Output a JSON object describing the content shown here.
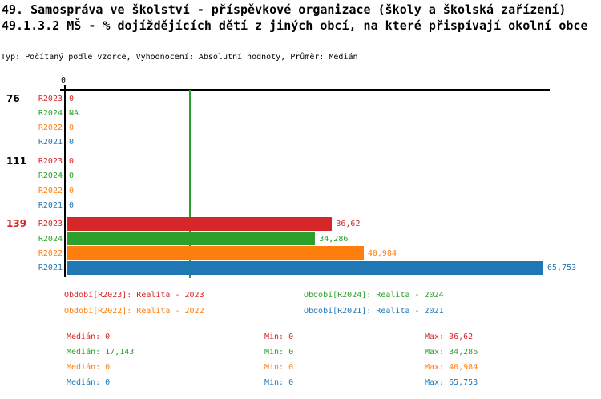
{
  "header": {
    "title_line1": "49. Samospráva ve školství - příspěvkové organizace (školy a školská zařízení)",
    "title_line2": "49.1.3.2 MŠ - % dojíždějících dětí z jiných obcí, na které přispívají okolní obce",
    "meta": "Typ: Počítaný podle vzorce, Vyhodnocení: Absolutní hodnoty, Průměr: Medián"
  },
  "colors": {
    "R2023": "#d62728",
    "R2024": "#2ca02c",
    "R2022": "#ff7f0e",
    "R2021": "#1f77b4",
    "axis": "#000000",
    "median_line": "#2ca02c",
    "group_label_default": "#000000",
    "group_label_highlight": "#d62728"
  },
  "chart_data": {
    "type": "bar",
    "orientation": "horizontal",
    "axis_tick_zero": "0",
    "x_min": 0,
    "x_max": 65.753,
    "median_line_value": 17.143,
    "series_order": [
      "R2023",
      "R2024",
      "R2022",
      "R2021"
    ],
    "groups": [
      {
        "label": "76",
        "label_color": "#000000",
        "rows": [
          {
            "series": "R2023",
            "value": 0,
            "display": "0"
          },
          {
            "series": "R2024",
            "value": null,
            "display": "NA"
          },
          {
            "series": "R2022",
            "value": 0,
            "display": "0"
          },
          {
            "series": "R2021",
            "value": 0,
            "display": "0"
          }
        ]
      },
      {
        "label": "111",
        "label_color": "#000000",
        "rows": [
          {
            "series": "R2023",
            "value": 0,
            "display": "0"
          },
          {
            "series": "R2024",
            "value": 0,
            "display": "0"
          },
          {
            "series": "R2022",
            "value": 0,
            "display": "0"
          },
          {
            "series": "R2021",
            "value": 0,
            "display": "0"
          }
        ]
      },
      {
        "label": "139",
        "label_color": "#d62728",
        "rows": [
          {
            "series": "R2023",
            "value": 36.62,
            "display": "36,62"
          },
          {
            "series": "R2024",
            "value": 34.286,
            "display": "34,286"
          },
          {
            "series": "R2022",
            "value": 40.984,
            "display": "40,984"
          },
          {
            "series": "R2021",
            "value": 65.753,
            "display": "65,753"
          }
        ]
      }
    ]
  },
  "legend": [
    {
      "series": "R2023",
      "label": "Období[R2023]: Realita - 2023"
    },
    {
      "series": "R2024",
      "label": "Období[R2024]: Realita - 2024"
    },
    {
      "series": "R2022",
      "label": "Období[R2022]: Realita - 2022"
    },
    {
      "series": "R2021",
      "label": "Období[R2021]: Realita - 2021"
    }
  ],
  "stats": [
    {
      "series": "R2023",
      "median": "Medián: 0",
      "min": "Min: 0",
      "max": "Max: 36,62"
    },
    {
      "series": "R2024",
      "median": "Medián: 17,143",
      "min": "Min: 0",
      "max": "Max: 34,286"
    },
    {
      "series": "R2022",
      "median": "Medián: 0",
      "min": "Min: 0",
      "max": "Max: 40,984"
    },
    {
      "series": "R2021",
      "median": "Medián: 0",
      "min": "Min: 0",
      "max": "Max: 65,753"
    }
  ]
}
